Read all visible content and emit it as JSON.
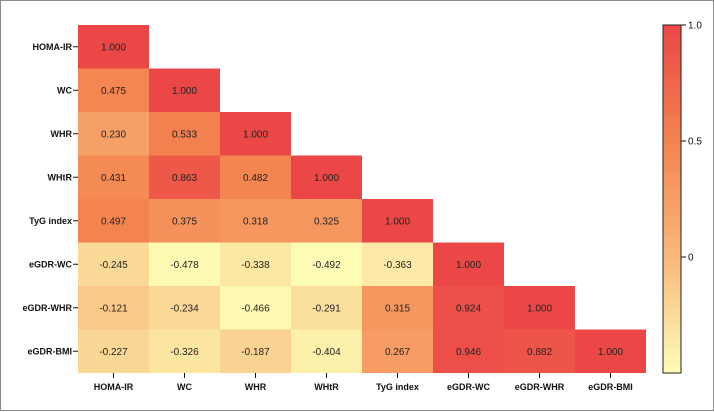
{
  "chart_data": {
    "type": "heatmap",
    "variables": [
      "HOMA-IR",
      "WC",
      "WHR",
      "WHtR",
      "TyG index",
      "eGDR-WC",
      "eGDR-WHR",
      "eGDR-BMI"
    ],
    "matrix": [
      [
        "1.000"
      ],
      [
        "0.475",
        "1.000"
      ],
      [
        "0.230",
        "0.533",
        "1.000"
      ],
      [
        "0.431",
        "0.863",
        "0.482",
        "1.000"
      ],
      [
        "0.497",
        "0.375",
        "0.318",
        "0.325",
        "1.000"
      ],
      [
        "-0.245",
        "-0.478",
        "-0.338",
        "-0.492",
        "-0.363",
        "1.000"
      ],
      [
        "-0.121",
        "-0.234",
        "-0.466",
        "-0.291",
        "0.315",
        "0.924",
        "1.000"
      ],
      [
        "-0.227",
        "-0.326",
        "-0.187",
        "-0.404",
        "0.267",
        "0.946",
        "0.882",
        "1.000"
      ]
    ],
    "colorbar": {
      "ticks": [
        "1.0",
        "0.5",
        "0"
      ],
      "tick_values": [
        1.0,
        0.5,
        0
      ],
      "range": [
        -0.5,
        1.0
      ],
      "colors": {
        "low": "#fdfdb6",
        "mid": "#f9b97b",
        "high": "#eb4747"
      }
    },
    "layout": "lower-triangle"
  }
}
